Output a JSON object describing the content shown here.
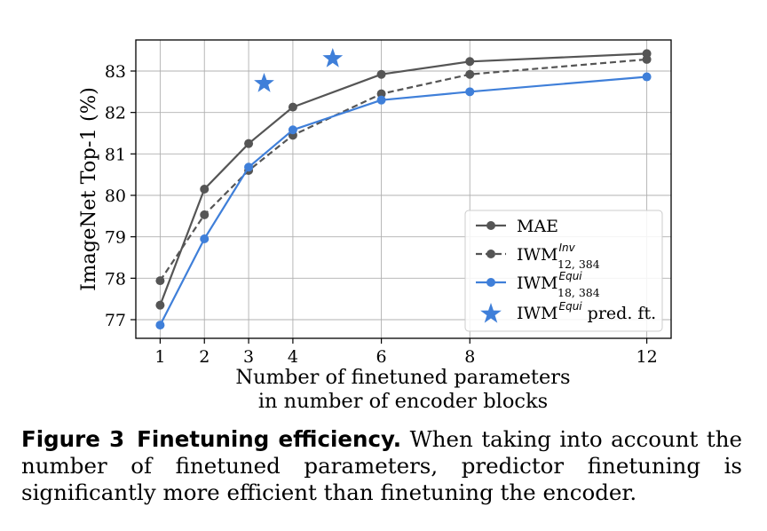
{
  "chart_data": {
    "type": "line",
    "xlabel_line1": "Number of finetuned parameters",
    "xlabel_line2": "in number of encoder blocks",
    "ylabel": "ImageNet Top-1 (%)",
    "xlim": [
      0.45,
      12.55
    ],
    "ylim": [
      76.55,
      83.75
    ],
    "x_ticks": [
      1,
      2,
      3,
      4,
      6,
      8,
      12
    ],
    "y_ticks": [
      77,
      78,
      79,
      80,
      81,
      82,
      83
    ],
    "grid": true,
    "legend_position": "lower-right",
    "series": [
      {
        "name": "MAE",
        "style": "solid",
        "color": "#555555",
        "x": [
          1,
          2,
          3,
          4,
          6,
          8,
          12
        ],
        "y": [
          77.35,
          80.15,
          81.25,
          82.13,
          82.92,
          83.23,
          83.42
        ]
      },
      {
        "name_base": "IWM",
        "name_sup": "Inv",
        "name_sub": "12, 384",
        "style": "dashed",
        "color": "#555555",
        "x": [
          1,
          2,
          3,
          4,
          6,
          8,
          12
        ],
        "y": [
          77.94,
          79.53,
          80.6,
          81.45,
          82.45,
          82.92,
          83.28
        ]
      },
      {
        "name_base": "IWM",
        "name_sup": "Equi",
        "name_sub": "18, 384",
        "style": "solid",
        "color": "#3f7fd9",
        "x": [
          1,
          2,
          3,
          4,
          6,
          8,
          12
        ],
        "y": [
          76.87,
          78.95,
          80.68,
          81.58,
          82.3,
          82.5,
          82.86
        ]
      },
      {
        "name_base": "IWM",
        "name_sup": "Equi",
        "name_rest": " pred. ft.",
        "style": "star-marker",
        "color": "#3f7fd9",
        "x": [
          3.35,
          4.9
        ],
        "y": [
          82.7,
          83.3
        ]
      }
    ]
  },
  "caption": {
    "label": "Figure 3",
    "title": "Finetuning efficiency.",
    "text": "When taking into account the number of finetuned parameters, predictor finetuning is significantly more efficient than finetuning the encoder."
  }
}
